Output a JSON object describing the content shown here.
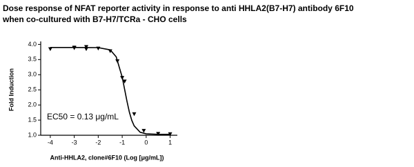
{
  "chart_data": {
    "type": "scatter",
    "title": [
      "Dose response of NFAT reporter activity in response to anti HHLA2(B7-H7) antibody 6F10",
      "when co-cultured with B7-H7/TCRa - CHO cells"
    ],
    "x_label": "Anti-HHLA2, clone#6F10 (Log [μg/mL])",
    "y_label": "Fold Induction",
    "annotation": "EC50 = 0.13 μg/mL",
    "x": [
      -4,
      -3,
      -3,
      -2.5,
      -2.5,
      -2,
      -1.5,
      -1.2,
      -1,
      -0.9,
      -0.5,
      -0.1,
      0.5,
      1
    ],
    "values": [
      3.85,
      3.88,
      3.9,
      3.92,
      3.85,
      3.87,
      3.78,
      3.45,
      2.9,
      2.78,
      1.7,
      1.15,
      1.05,
      1.04
    ],
    "color": "#000000",
    "curve": {
      "x": [
        -4,
        -3,
        -2,
        -1.5,
        -1.25,
        -1,
        -0.9,
        -0.8,
        -0.7,
        -0.6,
        -0.5,
        -0.25,
        0,
        0.5,
        1
      ],
      "y": [
        3.9,
        3.9,
        3.895,
        3.82,
        3.59,
        2.92,
        2.52,
        2.12,
        1.76,
        1.49,
        1.31,
        1.1,
        1.047,
        1.03,
        1.03
      ]
    },
    "xlim": [
      -4.4,
      1.3
    ],
    "xticks": [
      -4,
      -3,
      -2,
      -1,
      0,
      1
    ],
    "ylim": [
      1,
      4.1
    ],
    "yticks": [
      {
        "value": 1,
        "label": "1.0"
      },
      {
        "value": 1.5,
        "label": "1.5"
      },
      {
        "value": 2,
        "label": "2.0"
      },
      {
        "value": 2.5,
        "label": "2.5"
      },
      {
        "value": 3,
        "label": "3.0"
      },
      {
        "value": 3.5,
        "label": "3.5"
      },
      {
        "value": 4,
        "label": "4.0"
      }
    ]
  }
}
